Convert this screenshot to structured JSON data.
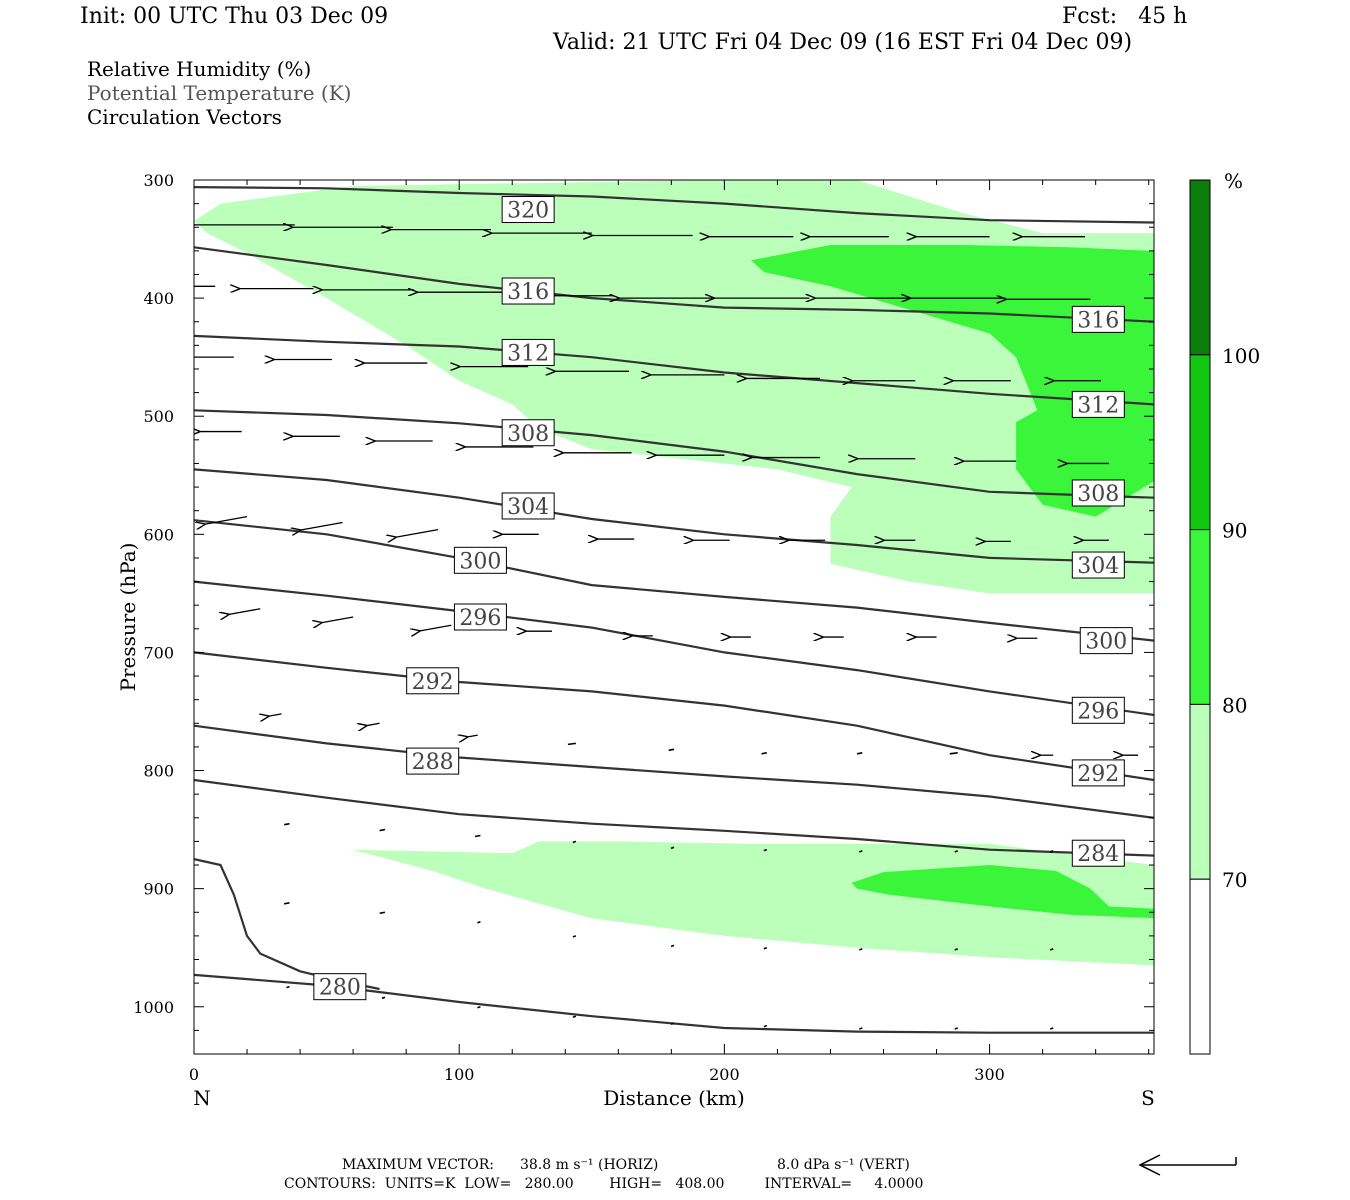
{
  "header": {
    "init": "Init: 00 UTC Thu 03 Dec 09",
    "fcst": "Fcst:   45 h",
    "valid": "Valid: 21 UTC Fri 04 Dec 09 (16 EST Fri 04 Dec 09)"
  },
  "legend_lines": {
    "rh": "Relative Humidity (%)",
    "theta": "Potential Temperature (K)",
    "vectors": "Circulation Vectors"
  },
  "colors": {
    "rh_70_80": "#bbffbb",
    "rh_80_90": "#3bf53b",
    "rh_90_100": "#11c611",
    "rh_100": "#0b7d0b",
    "contour": "#333333"
  },
  "footer": {
    "max_vector_label": "MAXIMUM VECTOR:",
    "max_vector_horiz": "38.8 m s⁻¹ (HORIZ)",
    "max_vector_vert": "8.0 dPa s⁻¹ (VERT)",
    "contours_line": "CONTOURS:  UNITS=K  LOW=   280.00        HIGH=   408.00         INTERVAL=     4.0000"
  },
  "chart_data": {
    "type": "cross-section",
    "xlabel": "Distance (km)",
    "ylabel": "Pressure (hPa)",
    "x_end_labels": {
      "left": "N",
      "right": "S"
    },
    "xlim": [
      0,
      362
    ],
    "ylim": [
      1040,
      300
    ],
    "x_ticks": [
      "0",
      "100",
      "200",
      "300"
    ],
    "y_ticks": [
      "300",
      "400",
      "500",
      "600",
      "700",
      "800",
      "900",
      "1000"
    ],
    "colorbar": {
      "unit": "%",
      "levels": [
        "70",
        "80",
        "90",
        "100"
      ]
    },
    "theta_contours": [
      {
        "value": "320",
        "points": [
          [
            0,
            306
          ],
          [
            50,
            307
          ],
          [
            100,
            311
          ],
          [
            150,
            314
          ],
          [
            200,
            320
          ],
          [
            250,
            328
          ],
          [
            300,
            334
          ],
          [
            362,
            336
          ]
        ]
      },
      {
        "value": "316",
        "points": [
          [
            0,
            357
          ],
          [
            50,
            372
          ],
          [
            100,
            388
          ],
          [
            150,
            400
          ],
          [
            200,
            408
          ],
          [
            250,
            410
          ],
          [
            300,
            413
          ],
          [
            362,
            420
          ]
        ]
      },
      {
        "value": "312",
        "points": [
          [
            0,
            432
          ],
          [
            50,
            437
          ],
          [
            100,
            441
          ],
          [
            150,
            450
          ],
          [
            200,
            463
          ],
          [
            250,
            472
          ],
          [
            300,
            481
          ],
          [
            362,
            490
          ]
        ]
      },
      {
        "value": "308",
        "points": [
          [
            0,
            495
          ],
          [
            50,
            499
          ],
          [
            100,
            506
          ],
          [
            150,
            516
          ],
          [
            200,
            530
          ],
          [
            250,
            549
          ],
          [
            300,
            564
          ],
          [
            362,
            569
          ]
        ]
      },
      {
        "value": "304",
        "points": [
          [
            0,
            545
          ],
          [
            50,
            554
          ],
          [
            100,
            569
          ],
          [
            150,
            587
          ],
          [
            200,
            600
          ],
          [
            250,
            609
          ],
          [
            300,
            620
          ],
          [
            362,
            624
          ]
        ]
      },
      {
        "value": "300",
        "points": [
          [
            0,
            588
          ],
          [
            50,
            600
          ],
          [
            100,
            620
          ],
          [
            150,
            643
          ],
          [
            200,
            653
          ],
          [
            250,
            662
          ],
          [
            300,
            675
          ],
          [
            362,
            690
          ]
        ]
      },
      {
        "value": "296",
        "points": [
          [
            0,
            640
          ],
          [
            50,
            652
          ],
          [
            100,
            665
          ],
          [
            150,
            679
          ],
          [
            200,
            700
          ],
          [
            250,
            715
          ],
          [
            300,
            733
          ],
          [
            362,
            753
          ]
        ]
      },
      {
        "value": "292",
        "points": [
          [
            0,
            700
          ],
          [
            50,
            713
          ],
          [
            100,
            725
          ],
          [
            150,
            733
          ],
          [
            200,
            745
          ],
          [
            250,
            762
          ],
          [
            300,
            787
          ],
          [
            362,
            808
          ]
        ]
      },
      {
        "value": "288",
        "points": [
          [
            0,
            762
          ],
          [
            50,
            777
          ],
          [
            100,
            789
          ],
          [
            150,
            797
          ],
          [
            200,
            805
          ],
          [
            250,
            812
          ],
          [
            300,
            822
          ],
          [
            362,
            840
          ]
        ]
      },
      {
        "value": "284",
        "points": [
          [
            0,
            808
          ],
          [
            50,
            823
          ],
          [
            100,
            837
          ],
          [
            150,
            845
          ],
          [
            200,
            851
          ],
          [
            250,
            858
          ],
          [
            300,
            867
          ],
          [
            362,
            872
          ]
        ]
      },
      {
        "value": "280",
        "points": [
          [
            0,
            973
          ],
          [
            50,
            982
          ],
          [
            100,
            996
          ],
          [
            150,
            1008
          ],
          [
            200,
            1018
          ],
          [
            250,
            1021
          ],
          [
            300,
            1022
          ],
          [
            362,
            1022
          ]
        ]
      }
    ],
    "theta_label_positions": [
      {
        "value": "320",
        "x": 126,
        "p": 325
      },
      {
        "value": "316",
        "x": 126,
        "p": 394
      },
      {
        "value": "316",
        "x": 341,
        "p": 418
      },
      {
        "value": "312",
        "x": 126,
        "p": 446
      },
      {
        "value": "312",
        "x": 341,
        "p": 490
      },
      {
        "value": "308",
        "x": 126,
        "p": 514
      },
      {
        "value": "308",
        "x": 341,
        "p": 565
      },
      {
        "value": "304",
        "x": 126,
        "p": 576
      },
      {
        "value": "304",
        "x": 341,
        "p": 626
      },
      {
        "value": "300",
        "x": 108,
        "p": 622
      },
      {
        "value": "300",
        "x": 344,
        "p": 690
      },
      {
        "value": "296",
        "x": 108,
        "p": 670
      },
      {
        "value": "296",
        "x": 341,
        "p": 749
      },
      {
        "value": "292",
        "x": 90,
        "p": 724
      },
      {
        "value": "292",
        "x": 341,
        "p": 802
      },
      {
        "value": "288",
        "x": 90,
        "p": 792
      },
      {
        "value": "284",
        "x": 341,
        "p": 870
      },
      {
        "value": "280",
        "x": 55,
        "p": 983
      }
    ],
    "terrain_or_extra_line": [
      [
        0,
        875
      ],
      [
        10,
        880
      ],
      [
        15,
        905
      ],
      [
        20,
        940
      ],
      [
        25,
        955
      ],
      [
        40,
        970
      ],
      [
        55,
        978
      ],
      [
        70,
        985
      ]
    ],
    "rh_70_region": [
      [
        0,
        335
      ],
      [
        10,
        320
      ],
      [
        60,
        305
      ],
      [
        200,
        300
      ],
      [
        250,
        300
      ],
      [
        290,
        328
      ],
      [
        320,
        345
      ],
      [
        362,
        345
      ],
      [
        362,
        650
      ],
      [
        300,
        650
      ],
      [
        270,
        640
      ],
      [
        240,
        625
      ],
      [
        240,
        585
      ],
      [
        248,
        560
      ],
      [
        220,
        545
      ],
      [
        180,
        535
      ],
      [
        150,
        528
      ],
      [
        130,
        510
      ],
      [
        120,
        490
      ],
      [
        100,
        470
      ],
      [
        80,
        440
      ],
      [
        50,
        400
      ],
      [
        20,
        362
      ],
      [
        5,
        345
      ]
    ],
    "rh_80_region": [
      [
        210,
        368
      ],
      [
        240,
        355
      ],
      [
        290,
        355
      ],
      [
        330,
        357
      ],
      [
        362,
        360
      ],
      [
        362,
        555
      ],
      [
        340,
        585
      ],
      [
        320,
        575
      ],
      [
        310,
        545
      ],
      [
        310,
        505
      ],
      [
        318,
        495
      ],
      [
        310,
        450
      ],
      [
        300,
        430
      ],
      [
        270,
        410
      ],
      [
        240,
        390
      ],
      [
        215,
        378
      ]
    ],
    "rh_70_low_region": [
      [
        60,
        867
      ],
      [
        120,
        870
      ],
      [
        130,
        860
      ],
      [
        160,
        860
      ],
      [
        210,
        862
      ],
      [
        300,
        862
      ],
      [
        362,
        880
      ],
      [
        362,
        965
      ],
      [
        300,
        958
      ],
      [
        250,
        950
      ],
      [
        200,
        940
      ],
      [
        150,
        925
      ],
      [
        110,
        900
      ],
      [
        90,
        885
      ]
    ],
    "rh_80_low_region": [
      [
        248,
        895
      ],
      [
        260,
        886
      ],
      [
        300,
        880
      ],
      [
        325,
        885
      ],
      [
        338,
        900
      ],
      [
        345,
        915
      ],
      [
        362,
        917
      ],
      [
        362,
        925
      ],
      [
        330,
        922
      ],
      [
        300,
        915
      ],
      [
        262,
        905
      ],
      [
        250,
        900
      ]
    ],
    "vectors": [
      [
        0,
        338,
        -28
      ],
      [
        38,
        338,
        -38
      ],
      [
        75,
        340,
        -38
      ],
      [
        112,
        342,
        -38
      ],
      [
        150,
        345,
        -38
      ],
      [
        188,
        347,
        -38
      ],
      [
        226,
        348,
        -32
      ],
      [
        262,
        348,
        -30
      ],
      [
        300,
        348,
        -28
      ],
      [
        336,
        348,
        -24
      ],
      [
        8,
        390,
        -24
      ],
      [
        45,
        392,
        -28
      ],
      [
        83,
        393,
        -35
      ],
      [
        120,
        395,
        -36
      ],
      [
        158,
        398,
        -36
      ],
      [
        196,
        400,
        -36
      ],
      [
        232,
        400,
        -36
      ],
      [
        270,
        400,
        -36
      ],
      [
        306,
        400,
        -36
      ],
      [
        338,
        401,
        -32
      ],
      [
        15,
        450,
        -22
      ],
      [
        52,
        452,
        -22
      ],
      [
        88,
        455,
        -24
      ],
      [
        126,
        458,
        -26
      ],
      [
        164,
        462,
        -28
      ],
      [
        200,
        465,
        -28
      ],
      [
        236,
        468,
        -28
      ],
      [
        272,
        470,
        -24
      ],
      [
        308,
        470,
        -22
      ],
      [
        342,
        470,
        -18
      ],
      [
        18,
        513,
        -16
      ],
      [
        55,
        517,
        -18
      ],
      [
        90,
        521,
        -22
      ],
      [
        128,
        526,
        -26
      ],
      [
        165,
        531,
        -26
      ],
      [
        200,
        533,
        -26
      ],
      [
        236,
        535,
        -26
      ],
      [
        272,
        536,
        -22
      ],
      [
        310,
        538,
        -20
      ],
      [
        345,
        540,
        -16
      ],
      [
        20,
        585,
        -16
      ],
      [
        56,
        590,
        -16
      ],
      [
        92,
        596,
        -16
      ],
      [
        130,
        600,
        -14
      ],
      [
        166,
        604,
        -14
      ],
      [
        202,
        605,
        -14
      ],
      [
        238,
        605,
        -14
      ],
      [
        272,
        605,
        -12
      ],
      [
        308,
        606,
        -10
      ],
      [
        345,
        605,
        -10
      ],
      [
        25,
        663,
        -12
      ],
      [
        60,
        670,
        -12
      ],
      [
        97,
        677,
        -12
      ],
      [
        135,
        682,
        -10
      ],
      [
        173,
        686,
        -8
      ],
      [
        210,
        687,
        -8
      ],
      [
        245,
        687,
        -8
      ],
      [
        280,
        687,
        -8
      ],
      [
        318,
        688,
        -8
      ],
      [
        352,
        690,
        -10
      ],
      [
        33,
        752,
        -5
      ],
      [
        70,
        760,
        -5
      ],
      [
        107,
        770,
        -4
      ],
      [
        144,
        777,
        -3
      ],
      [
        181,
        782,
        -2
      ],
      [
        216,
        785,
        -2
      ],
      [
        252,
        785,
        -2
      ],
      [
        288,
        785,
        -3
      ],
      [
        324,
        787,
        -5
      ],
      [
        356,
        787,
        -6
      ],
      [
        36,
        845,
        -2
      ],
      [
        72,
        850,
        -2
      ],
      [
        108,
        855,
        -2
      ],
      [
        144,
        860,
        -1
      ],
      [
        181,
        865,
        -1
      ],
      [
        216,
        867,
        -1
      ],
      [
        252,
        868,
        -1
      ],
      [
        288,
        868,
        -1
      ],
      [
        324,
        868,
        -1
      ],
      [
        36,
        912,
        -2
      ],
      [
        72,
        920,
        -2
      ],
      [
        108,
        928,
        -1
      ],
      [
        144,
        940,
        -1
      ],
      [
        181,
        948,
        -1
      ],
      [
        216,
        950,
        -1
      ],
      [
        252,
        951,
        -1
      ],
      [
        288,
        951,
        -1
      ],
      [
        324,
        951,
        -1
      ],
      [
        36,
        983,
        -1
      ],
      [
        72,
        992,
        -1
      ],
      [
        108,
        1000,
        -1
      ],
      [
        144,
        1008,
        -1
      ],
      [
        181,
        1014,
        -1
      ],
      [
        216,
        1016,
        -1
      ],
      [
        252,
        1018,
        -1
      ],
      [
        288,
        1018,
        -1
      ],
      [
        324,
        1018,
        -1
      ]
    ]
  }
}
